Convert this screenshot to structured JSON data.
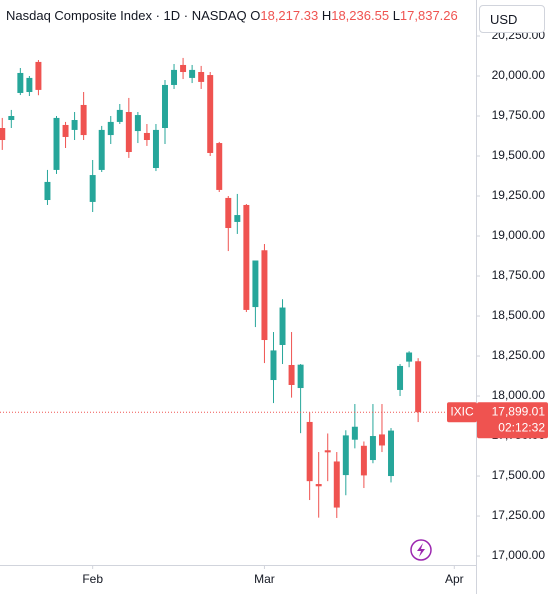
{
  "chart_data": {
    "type": "candlestick",
    "header": {
      "title": "Nasdaq Composite Index · 1D · NASDAQ",
      "open_key": "O",
      "open": "18,217.33",
      "high_key": "H",
      "high": "18,236.55",
      "low_key": "L",
      "low": "17,837.26"
    },
    "currency": "USD",
    "symbol": "IXIC",
    "last_price": {
      "value": 17899.01,
      "label": "17,899.01"
    },
    "countdown": "02:12:32",
    "up_color": "#26a69a",
    "down_color": "#ef5350",
    "open": [
      19675,
      19725,
      19894,
      19900,
      20088,
      19225,
      19413,
      19694,
      19663,
      19819,
      19213,
      19413,
      19631,
      19713,
      19775,
      19656,
      19644,
      19425,
      19675,
      19944,
      20069,
      19988,
      20025,
      20006,
      19581,
      19238,
      19088,
      19194,
      18556,
      18911,
      18100,
      18319,
      18194,
      18050,
      17838,
      17450,
      17661,
      17591,
      17506,
      17727,
      17689,
      17600,
      17760,
      17500,
      18038,
      18215,
      18217.33
    ],
    "high": [
      19738,
      19788,
      20050,
      20000,
      20100,
      19413,
      19750,
      19713,
      19775,
      19900,
      19475,
      19688,
      19750,
      19825,
      19863,
      19775,
      19700,
      19700,
      19975,
      20075,
      20113,
      20069,
      20063,
      20025,
      19588,
      19250,
      19263,
      19200,
      18847,
      18950,
      18400,
      18605,
      18400,
      18200,
      17900,
      17650,
      17766,
      17650,
      17786,
      17950,
      17716,
      17950,
      17950,
      17800,
      18200,
      18280,
      18236.55
    ],
    "low": [
      19538,
      19675,
      19881,
      19875,
      19880,
      19194,
      19388,
      19550,
      19600,
      19600,
      19150,
      19400,
      19575,
      19700,
      19488,
      19581,
      19563,
      19406,
      19575,
      19919,
      19981,
      19956,
      19919,
      19500,
      19275,
      18906,
      19013,
      18525,
      18431,
      18206,
      17956,
      18200,
      17990,
      17768,
      17350,
      17240,
      17468,
      17238,
      17380,
      17673,
      17425,
      17580,
      17650,
      17460,
      18000,
      18180,
      17837.26
    ],
    "close": [
      19600,
      19750,
      20019,
      19988,
      19913,
      19338,
      19738,
      19619,
      19725,
      19631,
      19381,
      19663,
      19713,
      19788,
      19525,
      19756,
      19600,
      19663,
      19944,
      20038,
      20025,
      20038,
      19963,
      19519,
      19288,
      19050,
      19131,
      18538,
      18847,
      18350,
      18285,
      18553,
      18069,
      18196,
      17468,
      17436,
      17648,
      17303,
      17754,
      17808,
      17504,
      17750,
      17691,
      17784,
      18188,
      18272,
      17899.01
    ],
    "xlim": [
      -0.25,
      52.4
    ],
    "xticks": [
      {
        "value": 10,
        "label": "Feb"
      },
      {
        "value": 29,
        "label": "Mar"
      },
      {
        "value": 50,
        "label": "Apr"
      }
    ],
    "ylim": [
      16944,
      20475
    ],
    "yticks": [
      {
        "value": 17000,
        "label": "17,000.00"
      },
      {
        "value": 17250,
        "label": "17,250.00"
      },
      {
        "value": 17500,
        "label": "17,500.00"
      },
      {
        "value": 17750,
        "label": "17,750.00"
      },
      {
        "value": 18000,
        "label": "18,000.00"
      },
      {
        "value": 18250,
        "label": "18,250.00"
      },
      {
        "value": 18500,
        "label": "18,500.00"
      },
      {
        "value": 18750,
        "label": "18,750.00"
      },
      {
        "value": 19000,
        "label": "19,000.00"
      },
      {
        "value": 19250,
        "label": "19,250.00"
      },
      {
        "value": 19500,
        "label": "19,500.00"
      },
      {
        "value": 19750,
        "label": "19,750.00"
      },
      {
        "value": 20000,
        "label": "20,000.00"
      },
      {
        "value": 20250,
        "label": "20,250.00"
      }
    ],
    "grid": false
  }
}
